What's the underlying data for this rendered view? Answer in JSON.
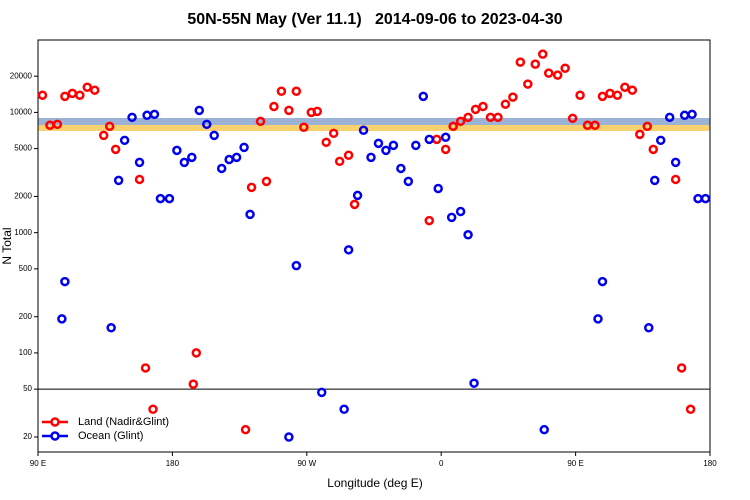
{
  "chart_data": {
    "type": "scatter",
    "title": "50N-55N May (Ver 11.1)   2014-09-06 to 2023-04-30",
    "x_label": "Longitude (deg E)",
    "y_label": "N Total",
    "log_y": true,
    "legend": "bottom-left",
    "reference_line": 50,
    "xlim": [
      -270,
      180
    ],
    "xticks": [
      {
        "value": -270,
        "label": "90 E"
      },
      {
        "value": -180,
        "label": "180"
      },
      {
        "value": -90,
        "label": "90 W"
      },
      0,
      {
        "value": 90,
        "label": "90 E"
      },
      180
    ],
    "ylim": [
      15,
      40000
    ],
    "yticks": [
      20,
      50,
      100,
      200,
      500,
      1000,
      2000,
      5000,
      10000,
      20000
    ],
    "series": [
      {
        "name": "Land (Nadir&Glint)",
        "color": "#ff0000",
        "x": [
          -267,
          -262,
          -257,
          -252,
          -247,
          -242,
          -237,
          -232,
          -226,
          -222,
          -218,
          -202,
          -198,
          -193,
          -166,
          -164,
          -131,
          -127,
          -121,
          -117,
          -112,
          -107,
          -102,
          -97,
          -92,
          -87,
          -83,
          -77,
          -72,
          -68,
          -62,
          -58,
          -8,
          -3,
          3,
          8,
          13,
          18,
          23,
          28,
          33,
          38,
          43,
          48,
          53,
          58,
          63,
          68,
          72,
          78,
          83,
          88,
          93,
          98,
          103,
          108,
          113,
          118,
          123,
          128,
          133,
          138,
          142,
          157,
          161,
          167
        ],
        "values": [
          13900,
          7820,
          7960,
          13600,
          14400,
          13900,
          16200,
          15300,
          6440,
          7660,
          4930,
          2770,
          75,
          34,
          55,
          100,
          23,
          2380,
          8430,
          2670,
          11200,
          15000,
          10400,
          15000,
          7520,
          10000,
          10200,
          5640,
          6700,
          3920,
          4400,
          1720,
          1260,
          5970,
          4930,
          7660,
          8430,
          9100,
          10600,
          11200,
          9100,
          9100,
          11700,
          13400,
          26200,
          17200,
          25200,
          30500,
          21200,
          20400,
          23300,
          8930,
          13900,
          7820,
          7820,
          13600,
          14400,
          13900,
          16200,
          15300,
          6570,
          7660,
          4930,
          2770,
          75,
          34
        ]
      },
      {
        "name": "Ocean (Glint)",
        "color": "#0000ee",
        "x": [
          -254,
          -252,
          -221,
          -216,
          -212,
          -207,
          -202,
          -197,
          -192,
          -188,
          -182,
          -177,
          -172,
          -167,
          -162,
          -157,
          -152,
          -147,
          -142,
          -137,
          -132,
          -128,
          -102,
          -97,
          -80,
          -65,
          -62,
          -56,
          -52,
          -47,
          -42,
          -37,
          -32,
          -27,
          -22,
          -17,
          -12,
          -8,
          -2,
          3,
          7,
          13,
          18,
          22,
          69,
          105,
          108,
          139,
          143,
          147,
          153,
          157,
          163,
          168,
          172,
          177
        ],
        "values": [
          192,
          392,
          162,
          2720,
          5860,
          9100,
          3840,
          9460,
          9640,
          1920,
          1920,
          4830,
          3840,
          4230,
          10400,
          7960,
          6440,
          3420,
          4060,
          4230,
          5120,
          1420,
          20,
          532,
          47,
          34,
          720,
          2040,
          7100,
          4230,
          5530,
          4830,
          5320,
          3420,
          2670,
          5320,
          13600,
          5970,
          2330,
          6210,
          1340,
          1500,
          960,
          56,
          23,
          192,
          392,
          162,
          2720,
          5860,
          9100,
          3840,
          9460,
          9640,
          1920,
          1920
        ]
      }
    ]
  }
}
